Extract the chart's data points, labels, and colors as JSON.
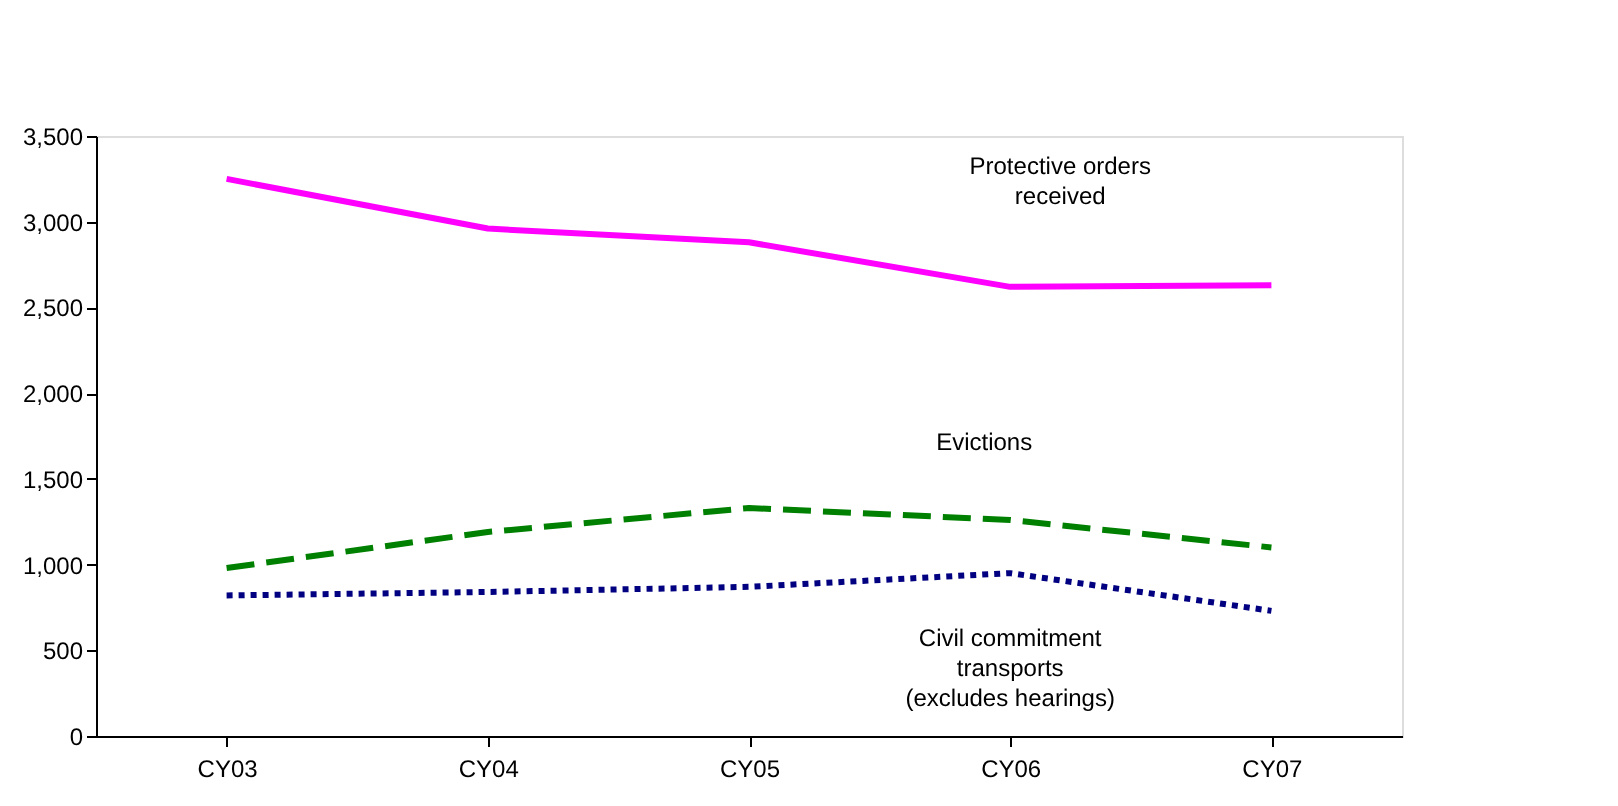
{
  "chart_data": {
    "type": "line",
    "categories": [
      "CY03",
      "CY04",
      "CY05",
      "CY06",
      "CY07"
    ],
    "ylim": [
      0,
      3500
    ],
    "yticks": [
      {
        "value": 0,
        "label": "0"
      },
      {
        "value": 500,
        "label": "500"
      },
      {
        "value": 1000,
        "label": "1,000"
      },
      {
        "value": 1500,
        "label": "1,500"
      },
      {
        "value": 2000,
        "label": "2,000"
      },
      {
        "value": 2500,
        "label": "2,500"
      },
      {
        "value": 3000,
        "label": "3,000"
      },
      {
        "value": 3500,
        "label": "3,500"
      }
    ],
    "grid": false,
    "legend": false,
    "marker": "none",
    "series": [
      {
        "name": "Protective orders received",
        "color": "#ff00ff",
        "line_style": "solid",
        "values": [
          3250,
          2960,
          2880,
          2620,
          2630
        ]
      },
      {
        "name": "Evictions",
        "color": "#008000",
        "line_style": "dashed",
        "values": [
          980,
          1190,
          1330,
          1260,
          1100
        ]
      },
      {
        "name": "Civil commitment transports (excludes hearings)",
        "color": "#000080",
        "line_style": "dotted",
        "values": [
          820,
          840,
          870,
          950,
          730
        ]
      }
    ]
  }
}
